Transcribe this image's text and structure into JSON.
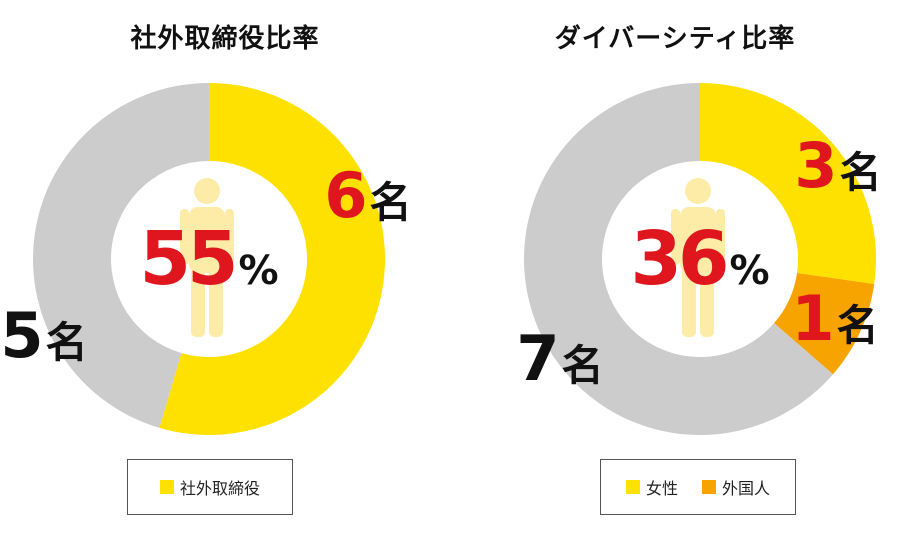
{
  "chart_data": [
    {
      "type": "pie",
      "title": "社外取締役比率",
      "center_value": "55",
      "center_unit": "%",
      "slices": [
        {
          "value": 6,
          "label_num": "6",
          "label_unit": "名",
          "color": "#FFE100",
          "num_color": "#E0161E"
        },
        {
          "value": 5,
          "label_num": "5",
          "label_unit": "名",
          "color": "#CCCCCC",
          "num_color": "#111111"
        }
      ],
      "legend": [
        {
          "label": "社外取締役",
          "color": "#FFE100"
        }
      ]
    },
    {
      "type": "pie",
      "title": "ダイバーシティ比率",
      "center_value": "36",
      "center_unit": "%",
      "slices": [
        {
          "value": 3,
          "label_num": "3",
          "label_unit": "名",
          "color": "#FFE100",
          "num_color": "#E0161E"
        },
        {
          "value": 1,
          "label_num": "1",
          "label_unit": "名",
          "color": "#F7A300",
          "num_color": "#E0161E"
        },
        {
          "value": 7,
          "label_num": "7",
          "label_unit": "名",
          "color": "#CCCCCC",
          "num_color": "#111111"
        }
      ],
      "legend": [
        {
          "label": "女性",
          "color": "#FFE100"
        },
        {
          "label": "外国人",
          "color": "#F7A300"
        }
      ]
    }
  ],
  "colors": {
    "accent_red": "#E0161E",
    "person_figure": "#FDEBA8"
  },
  "icons": {
    "center_icon": "person-silhouette-icon"
  }
}
